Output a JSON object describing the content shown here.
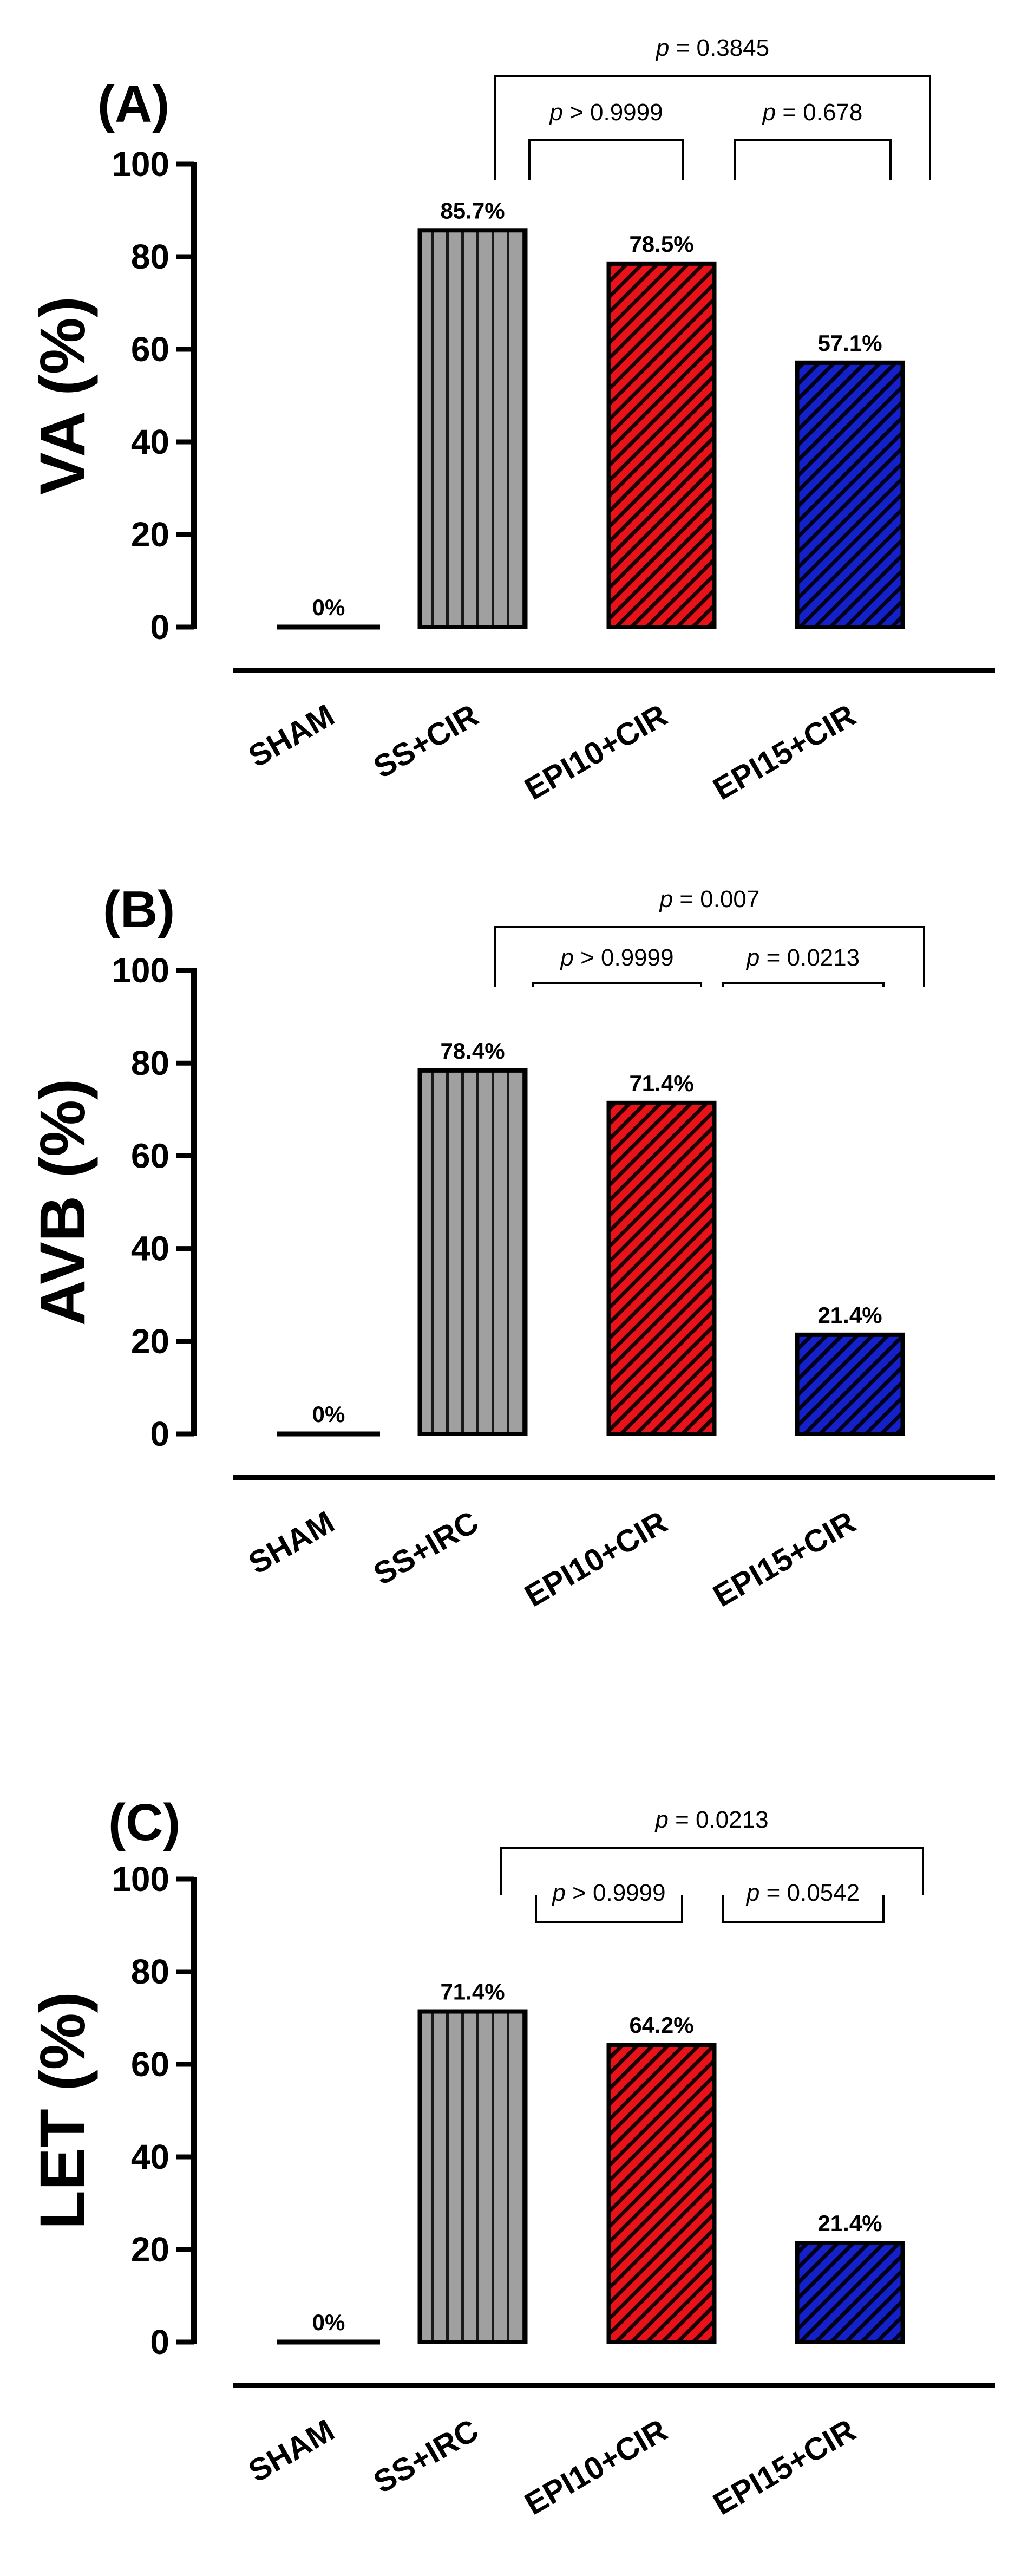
{
  "chart_data": [
    {
      "type": "bar",
      "panel": "(A)",
      "ylabel": "VA (%)",
      "ylim": [
        0,
        100
      ],
      "yticks": [
        0,
        20,
        40,
        60,
        80,
        100
      ],
      "categories": [
        "SHAM",
        "SS+CIR",
        "EPI10+CIR",
        "EPI15+CIR"
      ],
      "values": [
        0,
        85.7,
        78.5,
        57.1
      ],
      "data_labels": [
        "0%",
        "85.7%",
        "78.5%",
        "57.1%"
      ],
      "comparisons": [
        {
          "from": 1,
          "to": 2,
          "label": "> 0.9999"
        },
        {
          "from": 2,
          "to": 3,
          "label": "= 0.678"
        },
        {
          "from": 1,
          "to": 3,
          "label": "= 0.3845"
        }
      ]
    },
    {
      "type": "bar",
      "panel": "(B)",
      "ylabel": "AVB (%)",
      "ylim": [
        0,
        100
      ],
      "yticks": [
        0,
        20,
        40,
        60,
        80,
        100
      ],
      "categories": [
        "SHAM",
        "SS+IRC",
        "EPI10+CIR",
        "EPI15+CIR"
      ],
      "values": [
        0,
        78.4,
        71.4,
        21.4
      ],
      "data_labels": [
        "0%",
        "78.4%",
        "71.4%",
        "21.4%"
      ],
      "comparisons": [
        {
          "from": 1,
          "to": 2,
          "label": "> 0.9999"
        },
        {
          "from": 2,
          "to": 3,
          "label": "= 0.0213"
        },
        {
          "from": 1,
          "to": 3,
          "label": "= 0.007"
        }
      ]
    },
    {
      "type": "bar",
      "panel": "(C)",
      "ylabel": "LET (%)",
      "ylim": [
        0,
        100
      ],
      "yticks": [
        0,
        20,
        40,
        60,
        80,
        100
      ],
      "categories": [
        "SHAM",
        "SS+IRC",
        "EPI10+CIR",
        "EPI15+CIR"
      ],
      "values": [
        0,
        71.4,
        64.2,
        21.4
      ],
      "data_labels": [
        "0%",
        "71.4%",
        "64.2%",
        "21.4%"
      ],
      "comparisons": [
        {
          "from": 1,
          "to": 2,
          "label": "> 0.9999"
        },
        {
          "from": 2,
          "to": 3,
          "label": "= 0.0542"
        },
        {
          "from": 1,
          "to": 3,
          "label": "= 0.0213"
        }
      ]
    }
  ],
  "p_symbol": "p",
  "colors": {
    "sham": "#000000",
    "ss": "#a0a0a0",
    "epi10": "#e8121a",
    "epi15": "#1420c8",
    "axis": "#000000"
  }
}
